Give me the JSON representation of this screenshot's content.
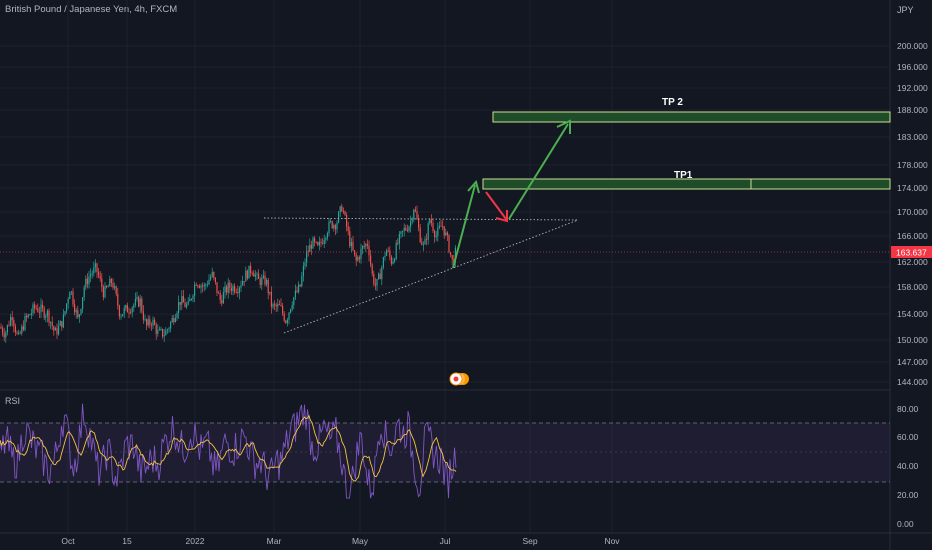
{
  "header": {
    "title": "British Pound / Japanese Yen, 4h, FXCM"
  },
  "axis": {
    "currency": "JPY",
    "price_ticks": [
      200.0,
      196.0,
      192.0,
      188.0,
      183.0,
      178.0,
      174.0,
      170.0,
      166.0,
      162.0,
      158.0,
      154.0,
      150.0,
      147.0,
      144.0
    ],
    "current_price": "163.637",
    "rsi_ticks": [
      "80.00",
      "60.00",
      "40.00",
      "20.00",
      "0.00"
    ],
    "time_labels": [
      "Oct",
      "15",
      "2022",
      "Mar",
      "May",
      "Jul",
      "Sep",
      "Nov"
    ]
  },
  "indicator": {
    "name": "RSI"
  },
  "annotations": {
    "tp1": "TP1",
    "tp2": "TP 2"
  },
  "colors": {
    "background": "#131722",
    "up": "#26a69a",
    "down": "#ef5350",
    "price_tag": "#f23645",
    "rsi_line": "#7e57c2",
    "rsi_ma": "#f5c343",
    "zone_fill": "#1f4d2a",
    "zone_border": "#c8e08e",
    "arrow_up": "#4caf50",
    "arrow_down": "#f23645",
    "icon_orange": "#ff9800"
  },
  "chart_data": {
    "type": "candlestick",
    "series": [
      {
        "name": "GBP/JPY",
        "approx_path": [
          [
            0,
            152
          ],
          [
            5,
            151
          ],
          [
            12,
            154
          ],
          [
            18,
            150
          ],
          [
            25,
            153
          ],
          [
            35,
            155
          ],
          [
            48,
            154
          ],
          [
            55,
            151
          ],
          [
            63,
            153
          ],
          [
            70,
            158
          ],
          [
            78,
            153
          ],
          [
            84,
            158
          ],
          [
            90,
            160
          ],
          [
            96,
            161
          ],
          [
            104,
            157
          ],
          [
            112,
            159
          ],
          [
            120,
            154
          ],
          [
            130,
            155
          ],
          [
            140,
            156
          ],
          [
            146,
            152
          ],
          [
            152,
            153
          ],
          [
            158,
            151
          ],
          [
            165,
            151
          ],
          [
            172,
            153
          ],
          [
            180,
            156
          ],
          [
            188,
            155
          ],
          [
            196,
            159
          ],
          [
            204,
            158
          ],
          [
            212,
            160
          ],
          [
            220,
            156
          ],
          [
            228,
            158
          ],
          [
            238,
            158
          ],
          [
            246,
            160
          ],
          [
            252,
            161
          ],
          [
            258,
            159
          ],
          [
            266,
            159
          ],
          [
            272,
            155
          ],
          [
            280,
            155
          ],
          [
            286,
            153
          ],
          [
            292,
            156
          ],
          [
            300,
            158
          ],
          [
            306,
            163
          ],
          [
            312,
            165
          ],
          [
            318,
            164
          ],
          [
            324,
            166
          ],
          [
            330,
            168
          ],
          [
            336,
            168
          ],
          [
            342,
            171
          ],
          [
            346,
            168
          ],
          [
            350,
            165
          ],
          [
            356,
            162
          ],
          [
            362,
            164
          ],
          [
            368,
            165
          ],
          [
            372,
            160
          ],
          [
            376,
            158
          ],
          [
            380,
            160
          ],
          [
            386,
            164
          ],
          [
            392,
            162
          ],
          [
            398,
            165
          ],
          [
            404,
            167
          ],
          [
            410,
            168
          ],
          [
            414,
            171
          ],
          [
            420,
            166
          ],
          [
            424,
            164
          ],
          [
            430,
            169
          ],
          [
            436,
            166
          ],
          [
            442,
            168
          ],
          [
            448,
            165
          ],
          [
            452,
            162
          ],
          [
            456,
            163.6
          ]
        ]
      }
    ],
    "rsi_levels": [
      30,
      70
    ],
    "resistance": 171.5,
    "tp1_zone": [
      174.3,
      176
    ],
    "tp2_zone": [
      186.8,
      188
    ]
  }
}
